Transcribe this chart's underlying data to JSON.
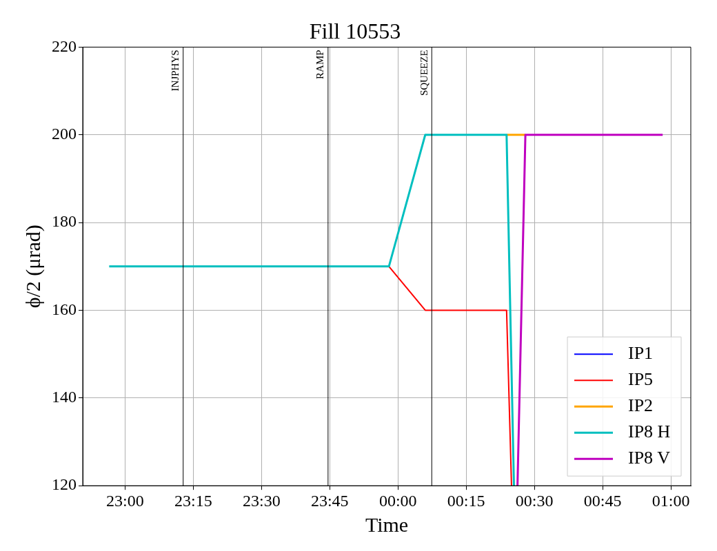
{
  "chart_data": {
    "type": "line",
    "title": "Fill 10553",
    "xlabel": "Time",
    "ylabel": "ϕ/2 (μrad)",
    "xlim": [
      "--01-01T22:50:42",
      "--01-02T01:04:23"
    ],
    "ylim": [
      120,
      220
    ],
    "xticks": [
      {
        "value": "--01-01T23:00",
        "label": "23:00"
      },
      {
        "value": "--01-01T23:15",
        "label": "23:15"
      },
      {
        "value": "--01-01T23:30",
        "label": "23:30"
      },
      {
        "value": "--01-01T23:45",
        "label": "23:45"
      },
      {
        "value": "--01-02T00:00",
        "label": "00:00"
      },
      {
        "value": "--01-02T00:15",
        "label": "00:15"
      },
      {
        "value": "--01-02T00:30",
        "label": "00:30"
      },
      {
        "value": "--01-02T00:45",
        "label": "00:45"
      },
      {
        "value": "--01-02T01:00",
        "label": "01:00"
      }
    ],
    "yticks": [
      120,
      140,
      160,
      180,
      200,
      220
    ],
    "grid": true,
    "legend": "bottom right",
    "marker": "none",
    "line_style": "solid",
    "ref_lines": [
      {
        "axis": "x",
        "value": "--01-01T23:12:47",
        "label": "INJPHYS",
        "color": "#000000"
      },
      {
        "axis": "x",
        "value": "--01-01T23:44:38",
        "label": "RAMP",
        "color": "#000000"
      },
      {
        "axis": "x",
        "value": "--01-02T00:07:26",
        "label": "SQUEEZE",
        "color": "#000000"
      }
    ],
    "series": [
      {
        "name": "IP1",
        "color": "#0000ff"
      },
      {
        "name": "IP5",
        "color": "#ff0000",
        "x": [
          "--01-01T23:58:01",
          "--01-02T00:06:00",
          "--01-02T00:23:53",
          "--01-02T00:24:58"
        ],
        "values": [
          170,
          160,
          160,
          120
        ]
      },
      {
        "name": "IP2",
        "color": "#ffa500",
        "x": [
          "--01-02T00:23:53",
          "--01-02T00:28:01"
        ],
        "values": [
          200,
          200
        ]
      },
      {
        "name": "IP8 H",
        "color": "#00bfbf",
        "x": [
          "--01-01T22:56:31",
          "--01-01T23:58:01",
          "--01-02T00:06:00",
          "--01-02T00:23:53",
          "--01-02T00:25:30"
        ],
        "values": [
          170,
          170,
          200,
          200,
          120
        ]
      },
      {
        "name": "IP8 V",
        "color": "#bf00bf",
        "x": [
          "--01-02T00:26:17",
          "--01-02T00:28:01",
          "--01-02T00:58:12"
        ],
        "values": [
          120,
          200,
          200
        ]
      }
    ]
  }
}
